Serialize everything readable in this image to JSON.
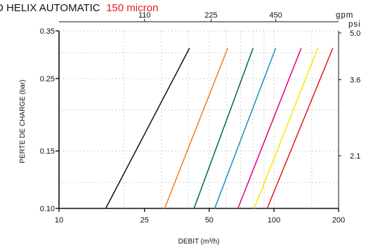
{
  "chart_data": {
    "type": "line",
    "title": "D HELIX AUTOMATIC",
    "subtitle": "150 micron",
    "subtitle_color": "#e41a1c",
    "xlabel": "DEBIT (m³/h)",
    "ylabel": "PERTE DE CHARGE (bar)",
    "x_scale": "log",
    "y_scale": "log",
    "xlim": [
      10,
      200
    ],
    "ylim": [
      0.1,
      0.35
    ],
    "x_ticks": [
      {
        "value": 10,
        "label": "10"
      },
      {
        "value": 25,
        "label": "25"
      },
      {
        "value": 50,
        "label": "50"
      },
      {
        "value": 100,
        "label": "100"
      },
      {
        "value": 200,
        "label": "200"
      }
    ],
    "y_ticks": [
      {
        "value": 0.1,
        "label": "0.10"
      },
      {
        "value": 0.15,
        "label": "0.15"
      },
      {
        "value": 0.25,
        "label": "0.25"
      },
      {
        "value": 0.35,
        "label": "0.35"
      }
    ],
    "top_axis": {
      "unit": "gpm",
      "ticks": [
        {
          "value": 25,
          "label": "110"
        },
        {
          "value": 51,
          "label": "225"
        },
        {
          "value": 102,
          "label": "450"
        }
      ]
    },
    "right_axis": {
      "unit": "psi",
      "ticks": [
        {
          "value": 0.345,
          "label": "5.0"
        },
        {
          "value": 0.248,
          "label": "3.6"
        },
        {
          "value": 0.145,
          "label": "2.1"
        }
      ]
    },
    "grid": true,
    "series": [
      {
        "color": "#111111",
        "points": [
          [
            16.5,
            0.1
          ],
          [
            40.5,
            0.31
          ]
        ]
      },
      {
        "color": "#f07d1e",
        "points": [
          [
            31,
            0.1
          ],
          [
            61,
            0.31
          ]
        ]
      },
      {
        "color": "#00694b",
        "points": [
          [
            42.5,
            0.1
          ],
          [
            80,
            0.31
          ]
        ]
      },
      {
        "color": "#1a8fc0",
        "points": [
          [
            53,
            0.1
          ],
          [
            102,
            0.31
          ]
        ]
      },
      {
        "color": "#e6007e",
        "points": [
          [
            68,
            0.1
          ],
          [
            134,
            0.31
          ]
        ]
      },
      {
        "color": "#f7e600",
        "points": [
          [
            81,
            0.1
          ],
          [
            160,
            0.31
          ]
        ]
      },
      {
        "color": "#e41a1c",
        "points": [
          [
            93,
            0.1
          ],
          [
            188,
            0.31
          ]
        ]
      }
    ]
  }
}
